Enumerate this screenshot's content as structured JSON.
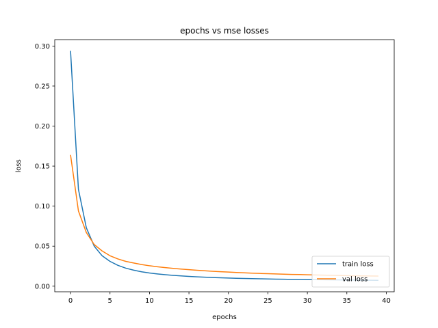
{
  "chart_data": {
    "type": "line",
    "title": "epochs vs mse losses",
    "xlabel": "epochs",
    "ylabel": "loss",
    "xlim": [
      -2,
      41
    ],
    "ylim": [
      -0.007,
      0.308
    ],
    "xticks": [
      0,
      5,
      10,
      15,
      20,
      25,
      30,
      35,
      40
    ],
    "xtick_labels": [
      "0",
      "5",
      "10",
      "15",
      "20",
      "25",
      "30",
      "35",
      "40"
    ],
    "yticks": [
      0.0,
      0.05,
      0.1,
      0.15,
      0.2,
      0.25,
      0.3
    ],
    "ytick_labels": [
      "0.00",
      "0.05",
      "0.10",
      "0.15",
      "0.20",
      "0.25",
      "0.30"
    ],
    "grid": false,
    "legend_position": "lower right",
    "x": [
      0,
      1,
      2,
      3,
      4,
      5,
      6,
      7,
      8,
      9,
      10,
      11,
      12,
      13,
      14,
      15,
      16,
      17,
      18,
      19,
      20,
      21,
      22,
      23,
      24,
      25,
      26,
      27,
      28,
      29,
      30,
      31,
      32,
      33,
      34,
      35,
      36,
      37,
      38,
      39
    ],
    "series": [
      {
        "name": "train loss",
        "color": "#1f77b4",
        "values": [
          0.294,
          0.121,
          0.073,
          0.05,
          0.038,
          0.031,
          0.026,
          0.0225,
          0.02,
          0.018,
          0.0165,
          0.0153,
          0.0143,
          0.0135,
          0.0128,
          0.0122,
          0.0117,
          0.0112,
          0.0108,
          0.0105,
          0.0102,
          0.0099,
          0.0097,
          0.0094,
          0.0092,
          0.009,
          0.0088,
          0.0087,
          0.0085,
          0.0084,
          0.0082,
          0.0081,
          0.008,
          0.0079,
          0.0078,
          0.0077,
          0.0076,
          0.0075,
          0.0074,
          0.0073
        ]
      },
      {
        "name": "val loss",
        "color": "#ff7f0e",
        "values": [
          0.164,
          0.094,
          0.067,
          0.052,
          0.044,
          0.038,
          0.034,
          0.031,
          0.029,
          0.027,
          0.0255,
          0.0243,
          0.0232,
          0.0222,
          0.0214,
          0.0206,
          0.0199,
          0.0192,
          0.0186,
          0.0181,
          0.0176,
          0.0171,
          0.0167,
          0.0163,
          0.0159,
          0.0156,
          0.0153,
          0.015,
          0.0147,
          0.0145,
          0.0142,
          0.014,
          0.0138,
          0.0136,
          0.0134,
          0.0132,
          0.013,
          0.0129,
          0.0127,
          0.0126
        ]
      }
    ]
  }
}
